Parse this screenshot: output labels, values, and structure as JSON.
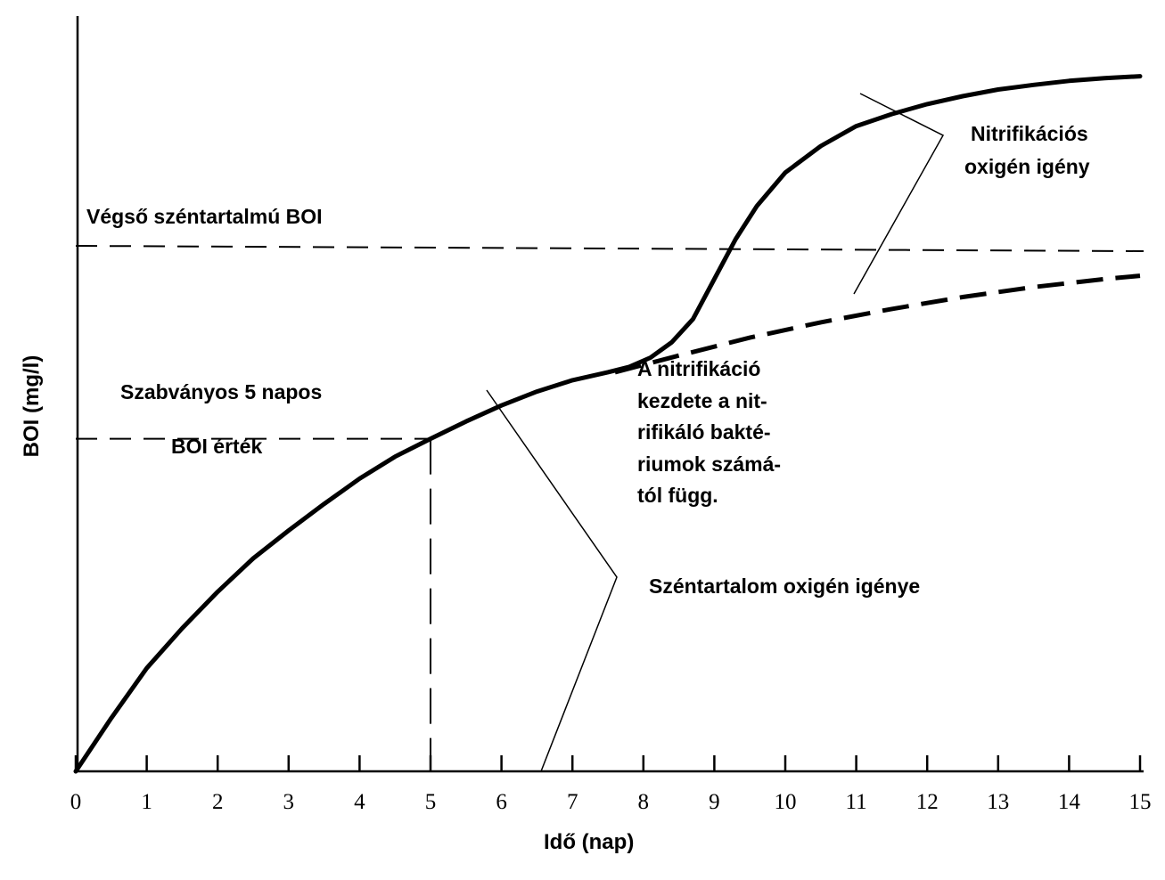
{
  "chart_data": {
    "type": "line",
    "xlabel": "Idő (nap)",
    "ylabel": "BOI (mg/l)",
    "xlim": [
      0,
      15
    ],
    "x_ticks": [
      "0",
      "1",
      "2",
      "3",
      "4",
      "5",
      "6",
      "7",
      "8",
      "9",
      "10",
      "11",
      "12",
      "13",
      "14",
      "15"
    ],
    "ylim": [
      0,
      1
    ],
    "grid": false,
    "series": [
      {
        "style": "solid-thick",
        "x": [
          0,
          0.5,
          1,
          1.5,
          2,
          2.5,
          3,
          3.5,
          4,
          4.5,
          5,
          5.5,
          6,
          6.5,
          7,
          7.5,
          7.8,
          8.1,
          8.4,
          8.7,
          9.0,
          9.3,
          9.6,
          10.0,
          10.5,
          11.0,
          11.5,
          12.0,
          12.5,
          13.0,
          13.5,
          14.0,
          14.5,
          15.0
        ],
        "y": [
          0.0,
          0.08,
          0.155,
          0.215,
          0.27,
          0.32,
          0.362,
          0.402,
          0.44,
          0.473,
          0.5,
          0.526,
          0.55,
          0.571,
          0.588,
          0.6,
          0.608,
          0.622,
          0.645,
          0.68,
          0.74,
          0.8,
          0.85,
          0.9,
          0.94,
          0.97,
          0.988,
          1.003,
          1.015,
          1.025,
          1.032,
          1.038,
          1.042,
          1.045
        ]
      },
      {
        "style": "dashed-thick",
        "x": [
          7.6,
          8.5,
          9.5,
          10.5,
          11.5,
          12.5,
          13.5,
          14.5,
          15.0
        ],
        "y": [
          0.6,
          0.625,
          0.652,
          0.675,
          0.695,
          0.713,
          0.728,
          0.74,
          0.745
        ]
      }
    ],
    "reference_lines": [
      {
        "style": "dashed-horizontal",
        "y": 0.79,
        "label": "Végső széntartalmú BOI"
      },
      {
        "style": "dashed-horizontal",
        "y": 0.5,
        "x_end": 5,
        "label": "Szabványos 5 napos BOI érték"
      },
      {
        "style": "dashed-vertical",
        "x": 5,
        "y_end": 0.5
      }
    ],
    "annotations": {
      "ultimate_bod": "Végső széntartalmú BOI",
      "standard_bod_line1": "Szabványos 5 napos",
      "standard_bod_line2": "BOI érték",
      "nitrification_line1": "Nitrifikációs",
      "nitrification_line2": "oxigén igény",
      "onset_line1": "A nitrifikáció",
      "onset_line2": "kezdete a nit-",
      "onset_line3": "rifikáló bakté-",
      "onset_line4": "riumok számá-",
      "onset_line5": "tól függ.",
      "carbon_demand": "Széntartalom oxigén igénye"
    }
  }
}
